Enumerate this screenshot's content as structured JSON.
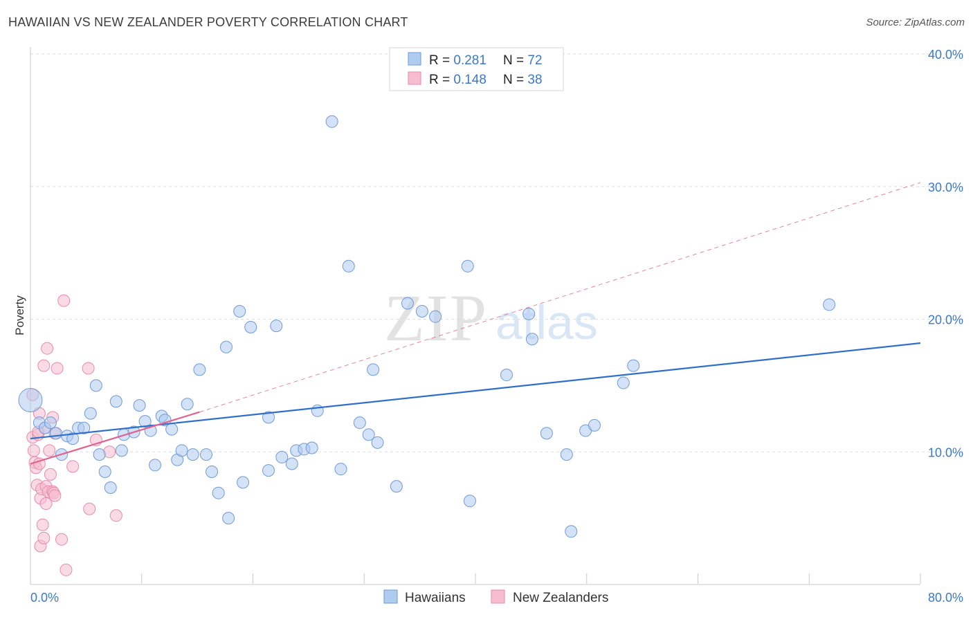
{
  "title": "HAWAIIAN VS NEW ZEALANDER POVERTY CORRELATION CHART",
  "source": "Source: ZipAtlas.com",
  "watermark": {
    "zip": "ZIP",
    "atlas": "atlas"
  },
  "colors": {
    "blue_fill": "#aecbf0",
    "blue_stroke": "#6f9ad6",
    "blue_line": "#2f6fcc",
    "pink_fill": "#f6bdd0",
    "pink_stroke": "#e88aaa",
    "pink_line": "#e0638d",
    "axis_text": "#3b78c9",
    "grid": "#dcdcdc"
  },
  "legend": {
    "rows": [
      {
        "r_label": "R = ",
        "r_value": "0.281",
        "n_label": "N = ",
        "n_value": "72",
        "series": "blue"
      },
      {
        "r_label": "R = ",
        "r_value": "0.148",
        "n_label": "N = ",
        "n_value": "38",
        "series": "pink"
      }
    ]
  },
  "chart_data": {
    "type": "scatter",
    "title": "HAWAIIAN VS NEW ZEALANDER POVERTY CORRELATION CHART",
    "xlabel": "",
    "ylabel": "Poverty",
    "xlim": [
      0,
      80
    ],
    "ylim": [
      0,
      40
    ],
    "x_tick_labels": [
      "0.0%",
      "80.0%"
    ],
    "y_ticks": [
      10,
      20,
      30,
      40
    ],
    "y_tick_labels": [
      "10.0%",
      "20.0%",
      "30.0%",
      "40.0%"
    ],
    "grid": true,
    "legend_position": "top-center",
    "series": [
      {
        "name": "Hawaiians",
        "r": 0.281,
        "n": 72,
        "trend": {
          "x": [
            0,
            80
          ],
          "y": [
            11.0,
            18.2
          ],
          "style": "solid"
        },
        "points": [
          [
            0.0,
            13.9
          ],
          [
            0.8,
            12.2
          ],
          [
            1.3,
            11.8
          ],
          [
            1.8,
            12.2
          ],
          [
            2.3,
            11.4
          ],
          [
            2.8,
            9.8
          ],
          [
            3.3,
            11.2
          ],
          [
            3.8,
            11.0
          ],
          [
            4.3,
            11.8
          ],
          [
            4.8,
            11.8
          ],
          [
            5.4,
            12.9
          ],
          [
            5.9,
            15.0
          ],
          [
            6.2,
            9.8
          ],
          [
            6.7,
            8.5
          ],
          [
            7.2,
            7.3
          ],
          [
            7.7,
            13.8
          ],
          [
            8.2,
            10.1
          ],
          [
            8.4,
            11.3
          ],
          [
            9.3,
            11.5
          ],
          [
            9.8,
            13.5
          ],
          [
            10.3,
            12.3
          ],
          [
            10.8,
            11.6
          ],
          [
            11.2,
            9.0
          ],
          [
            11.8,
            12.7
          ],
          [
            12.1,
            12.4
          ],
          [
            12.7,
            11.7
          ],
          [
            13.2,
            9.4
          ],
          [
            13.6,
            10.1
          ],
          [
            14.1,
            13.6
          ],
          [
            14.6,
            9.8
          ],
          [
            15.2,
            16.2
          ],
          [
            15.8,
            9.8
          ],
          [
            16.3,
            8.5
          ],
          [
            16.9,
            6.9
          ],
          [
            17.6,
            17.9
          ],
          [
            17.8,
            5.0
          ],
          [
            18.8,
            20.6
          ],
          [
            19.1,
            7.7
          ],
          [
            19.8,
            19.4
          ],
          [
            21.4,
            12.6
          ],
          [
            22.1,
            19.5
          ],
          [
            21.4,
            8.6
          ],
          [
            22.6,
            9.6
          ],
          [
            23.5,
            9.1
          ],
          [
            23.9,
            10.1
          ],
          [
            24.6,
            10.2
          ],
          [
            25.3,
            10.3
          ],
          [
            25.8,
            13.1
          ],
          [
            27.1,
            34.9
          ],
          [
            27.9,
            8.7
          ],
          [
            28.6,
            24.0
          ],
          [
            29.6,
            12.2
          ],
          [
            30.4,
            11.3
          ],
          [
            30.8,
            16.2
          ],
          [
            31.2,
            10.7
          ],
          [
            32.9,
            7.4
          ],
          [
            33.9,
            21.2
          ],
          [
            35.2,
            20.6
          ],
          [
            36.4,
            20.2
          ],
          [
            39.3,
            24.0
          ],
          [
            39.5,
            6.3
          ],
          [
            42.8,
            15.8
          ],
          [
            44.8,
            20.4
          ],
          [
            45.1,
            18.5
          ],
          [
            46.4,
            11.4
          ],
          [
            48.2,
            9.8
          ],
          [
            48.6,
            4.0
          ],
          [
            49.9,
            11.6
          ],
          [
            50.7,
            12.0
          ],
          [
            53.3,
            15.2
          ],
          [
            54.2,
            16.5
          ],
          [
            71.8,
            21.1
          ]
        ]
      },
      {
        "name": "New Zealanders",
        "r": 0.148,
        "n": 38,
        "trend": {
          "x": [
            0,
            15.2
          ],
          "y": [
            9.1,
            13.0
          ],
          "style": "solid",
          "extension": {
            "x": [
              15.2,
              80
            ],
            "y": [
              13.0,
              30.3
            ],
            "style": "dashed"
          }
        },
        "points": [
          [
            0.2,
            14.3
          ],
          [
            0.2,
            11.1
          ],
          [
            0.3,
            10.1
          ],
          [
            0.4,
            9.2
          ],
          [
            0.5,
            8.8
          ],
          [
            0.6,
            7.5
          ],
          [
            0.7,
            11.3
          ],
          [
            0.7,
            11.5
          ],
          [
            0.8,
            12.9
          ],
          [
            0.8,
            9.1
          ],
          [
            0.9,
            6.5
          ],
          [
            0.9,
            2.9
          ],
          [
            1.0,
            7.2
          ],
          [
            1.1,
            4.5
          ],
          [
            1.2,
            16.5
          ],
          [
            1.2,
            3.5
          ],
          [
            1.3,
            11.8
          ],
          [
            1.4,
            7.4
          ],
          [
            1.4,
            6.1
          ],
          [
            1.5,
            17.8
          ],
          [
            1.6,
            7.0
          ],
          [
            1.7,
            10.1
          ],
          [
            1.8,
            8.3
          ],
          [
            2.0,
            12.6
          ],
          [
            2.0,
            7.0
          ],
          [
            2.1,
            6.9
          ],
          [
            2.2,
            6.7
          ],
          [
            2.2,
            11.4
          ],
          [
            2.4,
            16.3
          ],
          [
            2.8,
            3.4
          ],
          [
            3.0,
            21.4
          ],
          [
            3.2,
            1.1
          ],
          [
            3.8,
            8.9
          ],
          [
            5.2,
            16.3
          ],
          [
            5.3,
            5.7
          ],
          [
            5.9,
            10.9
          ],
          [
            7.1,
            10.0
          ],
          [
            7.7,
            5.2
          ]
        ]
      }
    ]
  },
  "bottom_legend": {
    "items": [
      "Hawaiians",
      "New Zealanders"
    ]
  },
  "axis": {
    "x_min_label": "0.0%",
    "x_max_label": "80.0%",
    "y_label": "Poverty"
  }
}
